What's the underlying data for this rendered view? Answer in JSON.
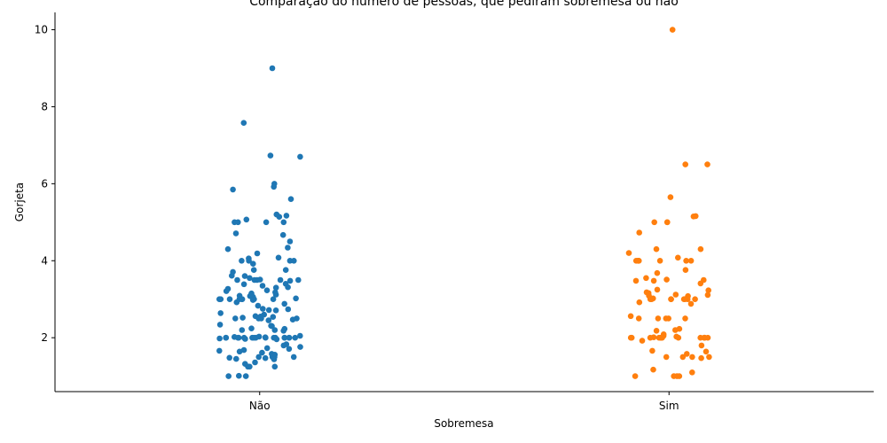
{
  "chart_data": {
    "type": "scatter",
    "title": "Comparação do número de pessoas, que pediram sobremesa ou não",
    "xlabel": "Sobremesa",
    "ylabel": "Gorjeta",
    "categories": [
      "Não",
      "Sim"
    ],
    "ylim": [
      0.6,
      10.45
    ],
    "yticks": [
      2,
      4,
      6,
      8,
      10
    ],
    "grid": false,
    "series": [
      {
        "category": "Não",
        "color": "#1f77b4",
        "values": [
          9.0,
          7.58,
          6.73,
          6.7,
          6.0,
          5.92,
          5.85,
          5.6,
          5.2,
          5.17,
          5.14,
          5.07,
          5.0,
          5.0,
          5.0,
          5.0,
          4.71,
          4.67,
          4.5,
          4.34,
          4.3,
          4.19,
          4.08,
          4.06,
          4.0,
          4.0,
          4.0,
          4.0,
          3.92,
          3.76,
          3.76,
          3.71,
          3.61,
          3.6,
          3.55,
          3.51,
          3.5,
          3.5,
          3.5,
          3.5,
          3.5,
          3.48,
          3.4,
          3.39,
          3.35,
          3.31,
          3.3,
          3.27,
          3.23,
          3.21,
          3.18,
          3.15,
          3.12,
          3.09,
          3.08,
          3.07,
          3.06,
          3.02,
          3.0,
          3.0,
          3.0,
          3.0,
          3.0,
          3.0,
          3.0,
          3.0,
          2.98,
          2.92,
          2.88,
          2.83,
          2.75,
          2.74,
          2.72,
          2.71,
          2.64,
          2.6,
          2.56,
          2.55,
          2.54,
          2.52,
          2.5,
          2.5,
          2.5,
          2.5,
          2.47,
          2.45,
          2.34,
          2.31,
          2.3,
          2.24,
          2.23,
          2.2,
          2.2,
          2.18,
          2.05,
          2.03,
          2.02,
          2.01,
          2.0,
          2.0,
          2.0,
          2.0,
          2.0,
          2.0,
          2.0,
          2.0,
          2.0,
          2.0,
          2.0,
          2.0,
          2.0,
          2.0,
          2.0,
          2.0,
          1.98,
          1.97,
          1.96,
          1.83,
          1.8,
          1.76,
          1.73,
          1.71,
          1.68,
          1.66,
          1.64,
          1.61,
          1.58,
          1.56,
          1.5,
          1.5,
          1.5,
          1.5,
          1.5,
          1.48,
          1.47,
          1.45,
          1.44,
          1.36,
          1.32,
          1.25,
          1.25,
          1.25,
          1.01,
          1.0,
          1.0
        ]
      },
      {
        "category": "Sim",
        "color": "#ff7f0e",
        "values": [
          10.0,
          6.5,
          6.5,
          5.65,
          5.16,
          5.15,
          5.0,
          5.0,
          5.0,
          4.73,
          4.3,
          4.3,
          4.2,
          4.08,
          4.0,
          4.0,
          4.0,
          4.0,
          4.0,
          4.0,
          4.0,
          3.76,
          3.68,
          3.55,
          3.51,
          3.5,
          3.48,
          3.48,
          3.41,
          3.25,
          3.23,
          3.18,
          3.16,
          3.12,
          3.11,
          3.09,
          3.08,
          3.02,
          3.0,
          3.0,
          3.0,
          3.0,
          3.0,
          3.0,
          3.0,
          3.0,
          2.92,
          2.88,
          2.56,
          2.5,
          2.5,
          2.5,
          2.5,
          2.5,
          2.23,
          2.2,
          2.18,
          2.09,
          2.05,
          2.03,
          2.01,
          2.0,
          2.0,
          2.0,
          2.0,
          2.0,
          2.0,
          2.0,
          2.0,
          2.0,
          2.0,
          2.0,
          2.0,
          2.0,
          2.0,
          1.92,
          1.8,
          1.66,
          1.64,
          1.58,
          1.5,
          1.5,
          1.5,
          1.5,
          1.47,
          1.17,
          1.1,
          1.0,
          1.0,
          1.0,
          1.0
        ]
      }
    ]
  }
}
